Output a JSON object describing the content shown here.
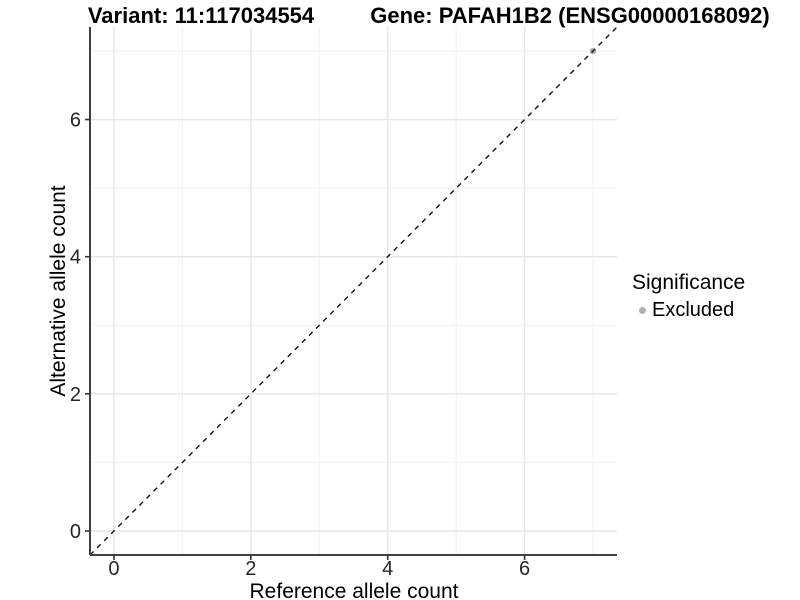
{
  "chart_data": {
    "type": "scatter",
    "title_left": "Variant: 11:117034554",
    "title_right": "Gene: PAFAH1B2 (ENSG00000168092)",
    "xlabel": "Reference allele count",
    "ylabel": "Alternative allele count",
    "xlim": [
      -0.35,
      7.35
    ],
    "ylim": [
      -0.35,
      7.35
    ],
    "x_major_ticks": [
      0,
      2,
      4,
      6
    ],
    "y_major_ticks": [
      0,
      2,
      4,
      6
    ],
    "x_minor_gridlines": [
      1,
      3,
      5,
      7
    ],
    "y_minor_gridlines": [
      1,
      3,
      5,
      7
    ],
    "grid": "major+minor",
    "legend_position": "right",
    "identity_line": {
      "slope": 1,
      "intercept": 0,
      "style": "dashed",
      "color": "#111111"
    },
    "series": [
      {
        "name": "Excluded",
        "color": "#b0b0b0",
        "points": [
          {
            "x": 7,
            "y": 7
          }
        ]
      }
    ],
    "legend": {
      "title": "Significance",
      "items": [
        {
          "label": "Excluded",
          "color": "#b0b0b0"
        }
      ]
    }
  },
  "colors": {
    "background": "#ffffff",
    "axis_line": "#404040",
    "tick_mark": "#333333",
    "tick_label": "#262626",
    "grid_major": "#e6e6e6",
    "grid_minor": "#f1f1f1"
  }
}
